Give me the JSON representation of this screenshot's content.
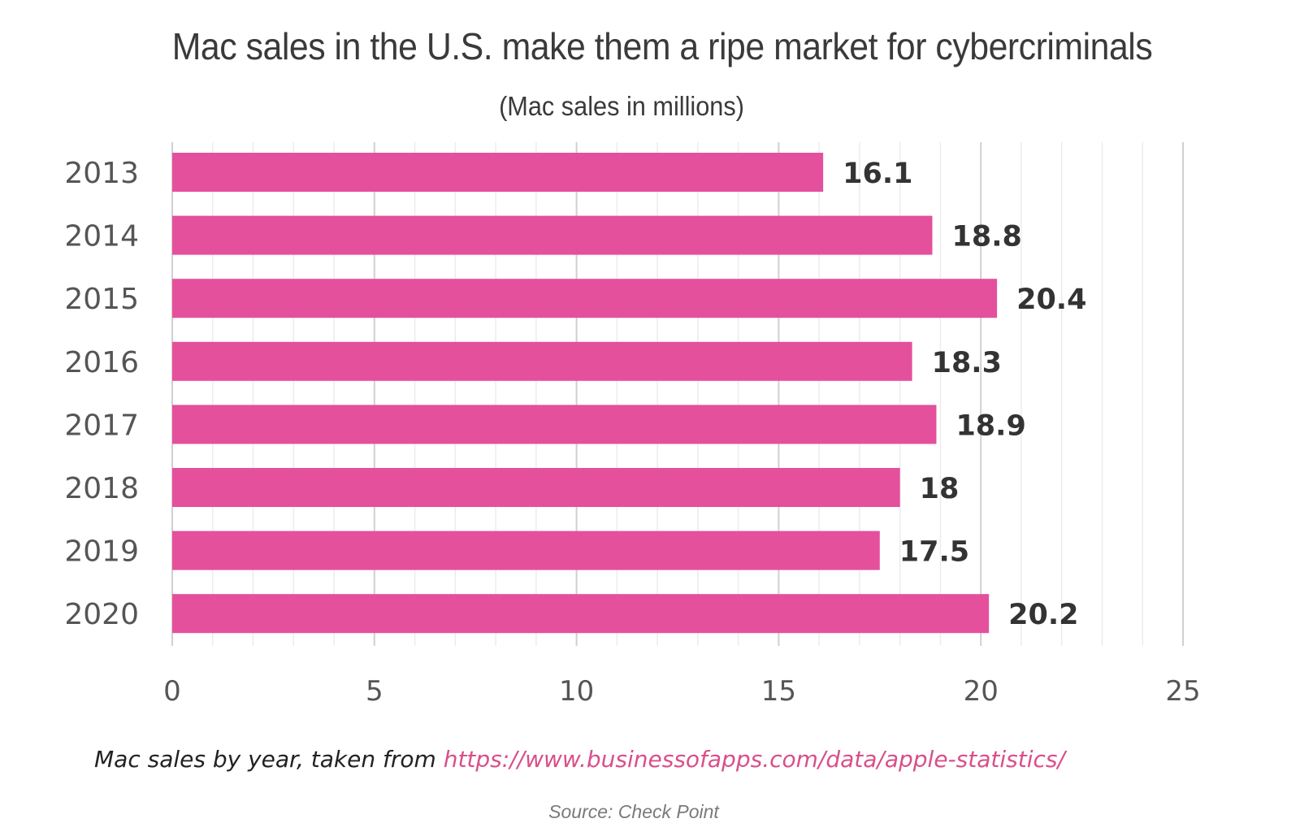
{
  "chart_data": {
    "type": "bar",
    "orientation": "horizontal",
    "title": "Mac sales in the U.S. make them a ripe market for cybercriminals",
    "subtitle": "(Mac sales in millions)",
    "categories": [
      "2013",
      "2014",
      "2015",
      "2016",
      "2017",
      "2018",
      "2019",
      "2020"
    ],
    "values": [
      16.1,
      18.8,
      20.4,
      18.3,
      18.9,
      18,
      17.5,
      20.2
    ],
    "data_labels": [
      "16.1",
      "18.8",
      "20.4",
      "18.3",
      "18.9",
      "18",
      "17.5",
      "20.2"
    ],
    "xlim": [
      0,
      25
    ],
    "x_ticks": [
      0,
      5,
      10,
      15,
      20,
      25
    ],
    "x_tick_labels": [
      "0",
      "5",
      "10",
      "15",
      "20",
      "25"
    ],
    "grid": true,
    "legend": "none",
    "bar_color": "#e4509b"
  },
  "caption": {
    "text": "Mac sales by year, taken from ",
    "link": "https://www.businessofapps.com/data/apple-statistics/",
    "link_color": "#d94f8a"
  },
  "source": "Source: Check Point"
}
